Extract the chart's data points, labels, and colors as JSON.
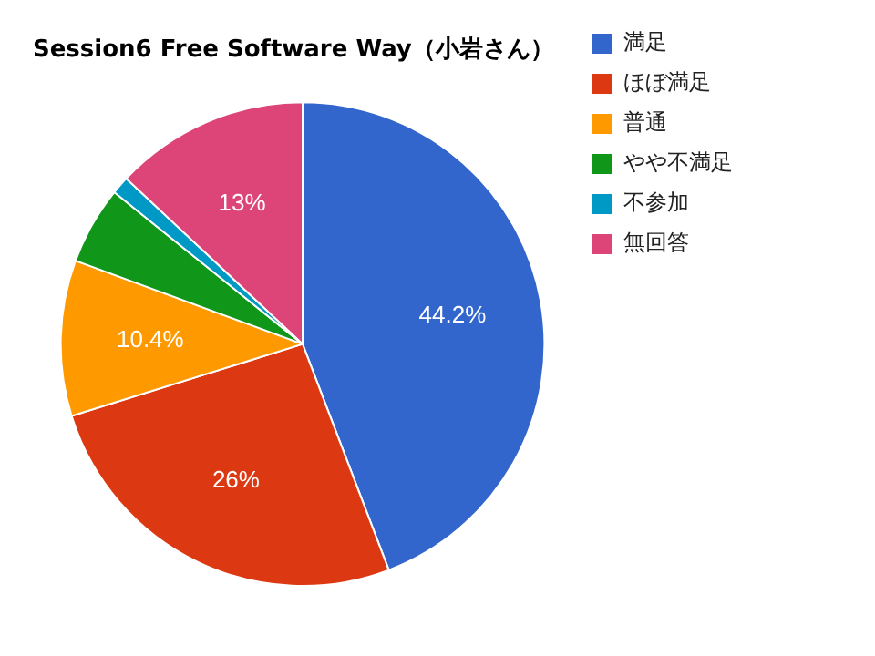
{
  "chart_data": {
    "type": "pie",
    "title": "Session6 Free Software Way（小岩さん）",
    "categories": [
      "満足",
      "ほぼ満足",
      "普通",
      "やや不満足",
      "不参加",
      "無回答"
    ],
    "values": [
      44.2,
      26,
      10.4,
      5.2,
      1.2,
      13
    ],
    "value_labels": [
      "44.2%",
      "26%",
      "10.4%",
      null,
      null,
      "13%"
    ],
    "colors": [
      "#3366cc",
      "#dc3912",
      "#ff9900",
      "#109618",
      "#0099c6",
      "#dd4477"
    ],
    "legend": "top right"
  }
}
